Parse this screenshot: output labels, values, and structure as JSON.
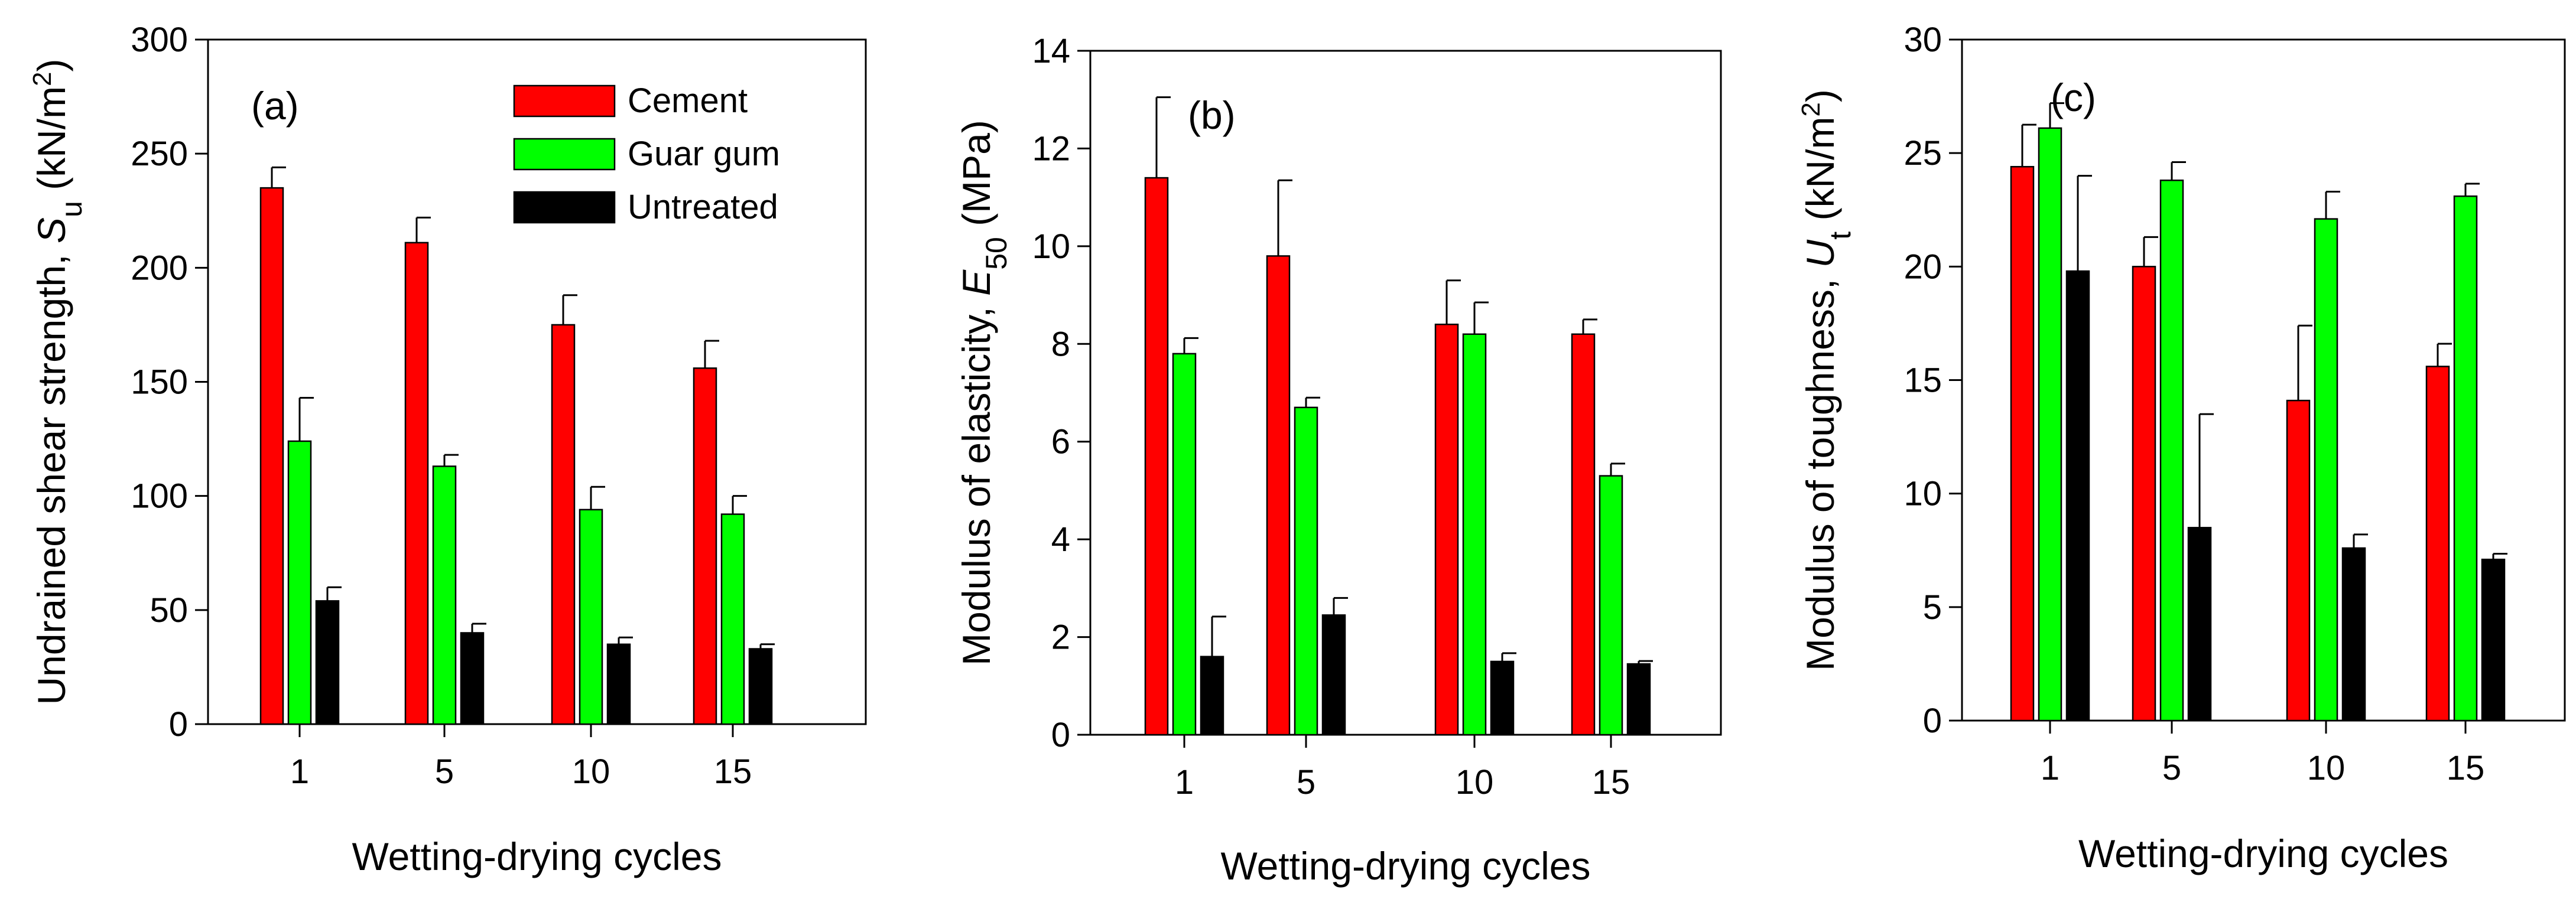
{
  "colors": {
    "Cement": "#ff0000",
    "Guar gum": "#00ff00",
    "Untreated": "#000000"
  },
  "legend": [
    {
      "name": "Cement",
      "color": "#ff0000"
    },
    {
      "name": "Guar gum",
      "color": "#00ff00"
    },
    {
      "name": "Untreated",
      "color": "#000000"
    }
  ],
  "chart_data": [
    {
      "type": "bar",
      "panel_label": "(a)",
      "xlabel": "Wetting-drying cycles",
      "ylabel": {
        "main": "Undrained shear strength, ",
        "var": "S",
        "sub": "u",
        "unit_open": " (kN/m",
        "unit_sup": "2",
        "unit_close": ")"
      },
      "categories": [
        "1",
        "5",
        "10",
        "15"
      ],
      "ylim": [
        0,
        300
      ],
      "yticks": [
        0,
        50,
        100,
        150,
        200,
        250,
        300
      ],
      "legend_position": "top-right",
      "series": [
        {
          "name": "Cement",
          "values": [
            235,
            211,
            175,
            156
          ],
          "errors": [
            9,
            11,
            13,
            12
          ]
        },
        {
          "name": "Guar gum",
          "values": [
            124,
            113,
            94,
            92
          ],
          "errors": [
            19,
            5,
            10,
            8
          ]
        },
        {
          "name": "Untreated",
          "values": [
            54,
            40,
            35,
            33
          ],
          "errors": [
            6,
            4,
            3,
            2
          ]
        }
      ]
    },
    {
      "type": "bar",
      "panel_label": "(b)",
      "xlabel": "Wetting-drying cycles",
      "ylabel": {
        "main": "Modulus of elasticity, ",
        "var": "E",
        "sub": "50",
        "unit_open": " (MPa)",
        "unit_sup": "",
        "unit_close": ""
      },
      "categories": [
        "1",
        "5",
        "10",
        "15"
      ],
      "ylim": [
        0,
        14
      ],
      "yticks": [
        0,
        2,
        4,
        6,
        8,
        10,
        12,
        14
      ],
      "series": [
        {
          "name": "Cement",
          "values": [
            11.4,
            9.8,
            8.4,
            8.2
          ],
          "errors": [
            1.65,
            1.55,
            0.9,
            0.3
          ]
        },
        {
          "name": "Guar gum",
          "values": [
            7.8,
            6.7,
            8.2,
            5.3
          ],
          "errors": [
            0.32,
            0.2,
            0.65,
            0.25
          ]
        },
        {
          "name": "Untreated",
          "values": [
            1.6,
            2.45,
            1.5,
            1.45
          ],
          "errors": [
            0.82,
            0.35,
            0.17,
            0.06
          ]
        }
      ]
    },
    {
      "type": "bar",
      "panel_label": "(c)",
      "xlabel": "Wetting-drying cycles",
      "ylabel": {
        "main": "Modulus of toughness, ",
        "var": "U",
        "sub": "t",
        "unit_open": " (kN/m",
        "unit_sup": "2",
        "unit_close": ")"
      },
      "categories": [
        "1",
        "5",
        "10",
        "15"
      ],
      "ylim": [
        0,
        30
      ],
      "yticks": [
        0,
        5,
        10,
        15,
        20,
        25,
        30
      ],
      "series": [
        {
          "name": "Cement",
          "values": [
            24.4,
            20.0,
            14.1,
            15.6
          ],
          "errors": [
            1.85,
            1.3,
            3.3,
            1.0
          ]
        },
        {
          "name": "Guar gum",
          "values": [
            26.1,
            23.8,
            22.1,
            23.1
          ],
          "errors": [
            1.1,
            0.8,
            1.2,
            0.55
          ]
        },
        {
          "name": "Untreated",
          "values": [
            19.8,
            8.5,
            7.6,
            7.1
          ],
          "errors": [
            4.2,
            5.0,
            0.6,
            0.25
          ]
        }
      ]
    }
  ]
}
